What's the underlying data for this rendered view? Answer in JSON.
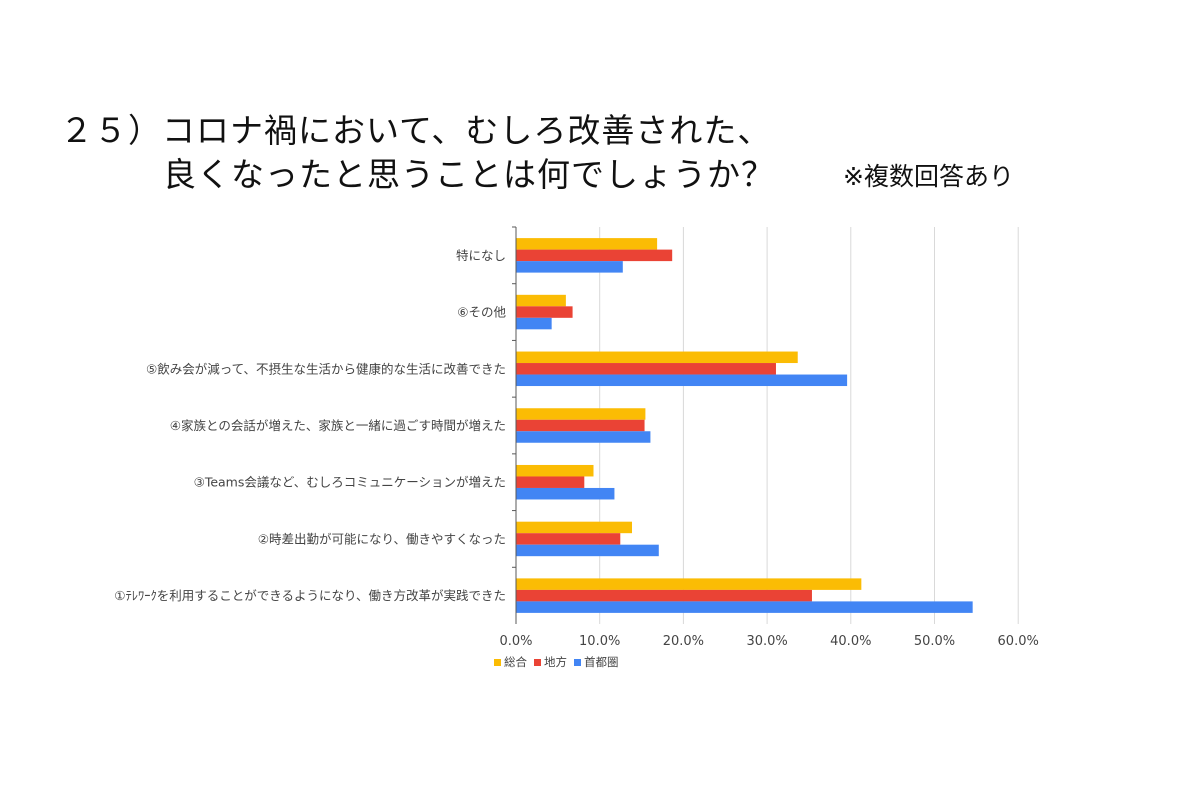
{
  "title": {
    "line1": "２５）コロナ禍において、むしろ改善された、",
    "line2": "良くなったと思うことは何でしょうか？",
    "note": "※複数回答あり"
  },
  "colors": {
    "総合": "#FBBC04",
    "地方": "#EA4335",
    "首都圏": "#4285F4",
    "grid": "#d9d9d9",
    "axis": "#595959",
    "label": "#444444"
  },
  "chart_data": {
    "type": "bar",
    "orientation": "horizontal",
    "categories": [
      "特になし",
      "⑥その他",
      "⑤飲み会が減って、不摂生な生活から健康的な生活に改善できた",
      "④家族との会話が増えた、家族と一緒に過ごす時間が増えた",
      "③Teams会議など、むしろコミュニケーションが増えた",
      "②時差出勤が可能になり、働きやすくなった",
      "①ﾃﾚﾜｰｸを利用することができるようになり、働き方改革が実践できた"
    ],
    "series": [
      {
        "name": "総合",
        "values": [
          16.8,
          5.9,
          33.6,
          15.4,
          9.2,
          13.8,
          41.2
        ]
      },
      {
        "name": "地方",
        "values": [
          18.6,
          6.7,
          31.0,
          15.3,
          8.1,
          12.4,
          35.3
        ]
      },
      {
        "name": "首都圏",
        "values": [
          12.7,
          4.2,
          39.5,
          16.0,
          11.7,
          17.0,
          54.5
        ]
      }
    ],
    "xlim": [
      0,
      60
    ],
    "xticks": [
      "0.0%",
      "10.0%",
      "20.0%",
      "30.0%",
      "40.0%",
      "50.0%",
      "60.0%"
    ],
    "grid": true,
    "legend_position": "bottom-left"
  }
}
